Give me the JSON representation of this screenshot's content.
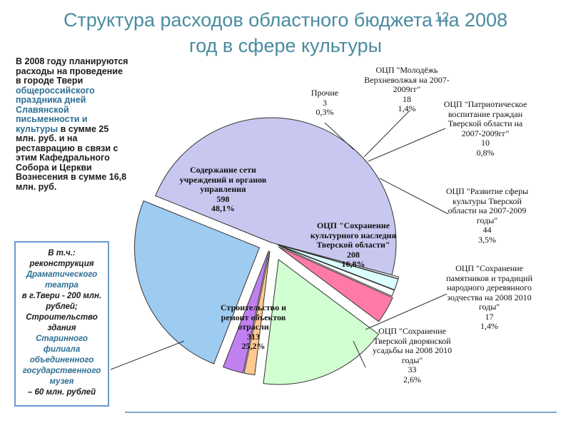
{
  "slide": {
    "title_line1": "Структура расходов областного бюджета на 2008",
    "title_line2": "год в сфере культуры",
    "page_number": "12"
  },
  "note_top": {
    "part1": "В 2008 году планируются расходы на проведение в городе Твери ",
    "part2": "общероссийского праздника дней Славянской письменности и культуры",
    "part3": " в сумме 25 млн. руб. и на реставрацию в связи с этим Кафедрального Собора и Церкви Вознесения в сумме 16,8 млн. руб."
  },
  "note_box": {
    "line1": "В т.ч.:",
    "line2": "реконструкция",
    "line3": "Драматического театра",
    "line4": "в г.Твери - 200 млн. рублей;",
    "line5": "Строительство здания",
    "line6": "Старинного филиала объединенного государственного музея",
    "line7": "– 60 млн. рублей"
  },
  "chart_data": {
    "type": "pie",
    "title": "",
    "series": [
      {
        "name": "Содержание сети учреждений и органов управления",
        "value": 598,
        "percent": "48,1%",
        "color": "#c7c7f0"
      },
      {
        "name": "Прочие",
        "value": 3,
        "percent": "0,3%",
        "color": "#ffffff"
      },
      {
        "name": "ОЦП \"Молодёжь Верхневолжья на 2007-2009гг\"",
        "value": 18,
        "percent": "1,4%",
        "color": "#d9ffff"
      },
      {
        "name": "ОЦП \"Патриотическое воспитание граждан Тверской области на 2007-2009гг\"",
        "value": 10,
        "percent": "0,8%",
        "color": "#ffffff"
      },
      {
        "name": "ОЦП \"Развитие сферы культуры Тверской области на 2007-2009 годы\"",
        "value": 44,
        "percent": "3,5%",
        "color": "#ff7aa6"
      },
      {
        "name": "ОЦП \"Сохранение культурного наследия Тверской области\"",
        "value": 208,
        "percent": "16,8%",
        "color": "#d2ffd2"
      },
      {
        "name": "ОЦП \"Сохранение памятников и традиций народного деревянного зодчества на 2008-2010 годы\"",
        "value": 17,
        "percent": "1,4%",
        "color": "#ffc890"
      },
      {
        "name": "ОЦП \"Сохранение Тверской дворянской усадьбы на 2008-2010 годы\"",
        "value": 33,
        "percent": "2,6%",
        "color": "#c080f0"
      },
      {
        "name": "Строительство и ремонт объектов отрасли",
        "value": 313,
        "percent": "25,2%",
        "color": "#9ecbf0"
      }
    ],
    "labels": {
      "main_name": "Содержание сети учреждений и органов управления",
      "main_value": "598",
      "main_pct": "48,1%",
      "other_name": "Прочие",
      "other_value": "3",
      "other_pct": "0,3%",
      "youth_name": "ОЦП \"Молодёжь Верхневолжья на 2007-2009гг\"",
      "youth_value": "18",
      "youth_pct": "1,4%",
      "patriot_name": "ОЦП \"Патриотическое воспитание граждан Тверской области на 2007-2009гг\"",
      "patriot_value": "10",
      "patriot_pct": "0,8%",
      "culture_name": "ОЦП \"Развитие сферы культуры Тверской области на 2007-2009 годы\"",
      "culture_value": "44",
      "culture_pct": "3,5%",
      "heritage_name": "ОЦП \"Сохранение культурного наследия Тверской области\"",
      "heritage_value": "208",
      "heritage_pct": "16,8%",
      "wooden_name": "ОЦП \"Сохранение памятников и традиций народного деревянного зодчества на 2008 2010 годы\"",
      "wooden_value": "17",
      "wooden_pct": "1,4%",
      "estate_name": "ОЦП \"Сохранение Тверской дворянской усадьбы на 2008 2010 годы\"",
      "estate_value": "33",
      "estate_pct": "2,6%",
      "build_name": "Строительство и ремонт объектов отрасли",
      "build_value": "313",
      "build_pct": "25,2%"
    }
  }
}
